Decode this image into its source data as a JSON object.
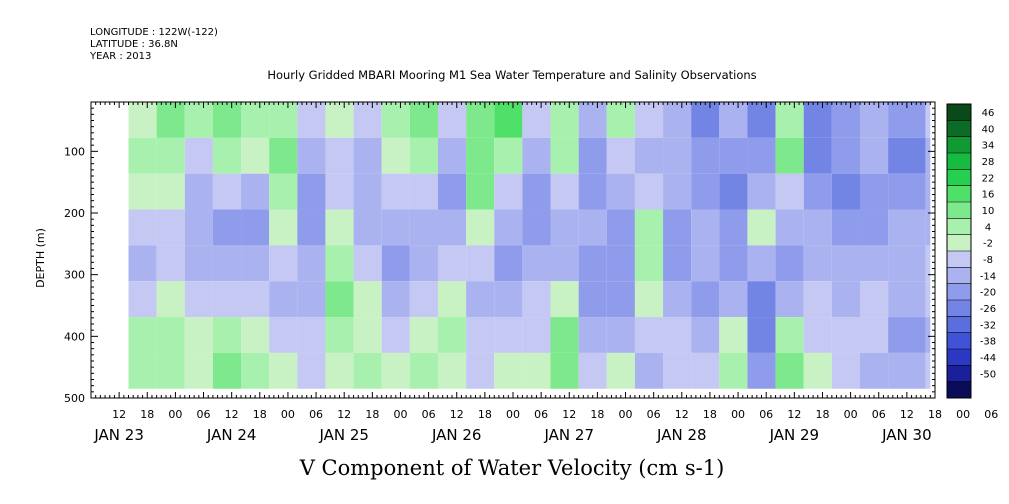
{
  "header": {
    "longitude": "LONGITUDE : 122W(-122)",
    "latitude": "LATITUDE : 36.8N",
    "year": "YEAR : 2013"
  },
  "chart_data": {
    "type": "heatmap",
    "title": "Hourly Gridded MBARI Mooring M1 Sea Water Temperature and Salinity Observations",
    "xlabel": "V Component of Water Velocity (cm s-1)",
    "ylabel": "DEPTH (m)",
    "y_ticks": [
      100,
      200,
      300,
      400,
      500
    ],
    "ylim": [
      500,
      20
    ],
    "x_hour_ticks": [
      "12",
      "18",
      "00",
      "06",
      "12",
      "18",
      "00",
      "06",
      "12",
      "18",
      "00",
      "06",
      "12",
      "18",
      "00",
      "06",
      "12",
      "18",
      "00",
      "06",
      "12",
      "18",
      "00",
      "06",
      "12",
      "18",
      "00",
      "06",
      "12",
      "18",
      "00",
      "06"
    ],
    "x_date_labels": [
      "JAN 23",
      "JAN 24",
      "JAN 25",
      "JAN 26",
      "JAN 27",
      "JAN 28",
      "JAN 29",
      "JAN 30"
    ],
    "xlim_hours": [
      6,
      186
    ],
    "data_start_hour": 14,
    "data_end_hour": 184,
    "depth_range_m": [
      20,
      485
    ],
    "colorbar": {
      "levels": [
        46,
        40,
        34,
        28,
        22,
        16,
        10,
        4,
        -2,
        -8,
        -14,
        -20,
        -26,
        -32,
        -38,
        -44,
        -50
      ],
      "colors_high_to_low": [
        "#0a4a1a",
        "#0d6b28",
        "#119934",
        "#16bb40",
        "#25d050",
        "#4fe06a",
        "#7ee88c",
        "#a8f0ad",
        "#c8f2c4",
        "#c4c8f2",
        "#aab2f0",
        "#8f9cec",
        "#7284e4",
        "#5a6ee0",
        "#3f52d8",
        "#2a38c4",
        "#1a1f9a",
        "#0a0c5a"
      ]
    },
    "columns": [
      {
        "hour": 14,
        "v": [
          4,
          6,
          2,
          -4,
          -8,
          -6,
          6,
          8
        ]
      },
      {
        "hour": 20,
        "v": [
          14,
          10,
          2,
          -6,
          -4,
          2,
          10,
          6
        ]
      },
      {
        "hour": 26,
        "v": [
          8,
          -2,
          -10,
          -12,
          -8,
          -4,
          2,
          4
        ]
      },
      {
        "hour": 32,
        "v": [
          12,
          10,
          -4,
          -14,
          -10,
          -2,
          6,
          12
        ]
      },
      {
        "hour": 38,
        "v": [
          6,
          2,
          -8,
          -16,
          -12,
          -6,
          4,
          8
        ]
      },
      {
        "hour": 44,
        "v": [
          10,
          14,
          10,
          2,
          -4,
          -8,
          -4,
          2
        ]
      },
      {
        "hour": 50,
        "v": [
          -4,
          -8,
          -14,
          -16,
          -12,
          -8,
          -4,
          -2
        ]
      },
      {
        "hour": 56,
        "v": [
          2,
          -2,
          -6,
          4,
          10,
          12,
          8,
          2
        ]
      },
      {
        "hour": 62,
        "v": [
          -6,
          -10,
          -12,
          -8,
          -4,
          0,
          4,
          6
        ]
      },
      {
        "hour": 68,
        "v": [
          8,
          4,
          -2,
          -10,
          -14,
          -12,
          -4,
          2
        ]
      },
      {
        "hour": 74,
        "v": [
          14,
          6,
          -6,
          -12,
          -8,
          -2,
          4,
          8
        ]
      },
      {
        "hour": 80,
        "v": [
          -4,
          -10,
          -14,
          -12,
          -6,
          2,
          6,
          4
        ]
      },
      {
        "hour": 86,
        "v": [
          12,
          16,
          12,
          4,
          -4,
          -8,
          -6,
          -2
        ]
      },
      {
        "hour": 92,
        "v": [
          18,
          8,
          -4,
          -12,
          -14,
          -10,
          -4,
          2
        ]
      },
      {
        "hour": 98,
        "v": [
          -2,
          -8,
          -14,
          -18,
          -12,
          -6,
          -2,
          4
        ]
      },
      {
        "hour": 104,
        "v": [
          8,
          6,
          -2,
          -10,
          -8,
          2,
          12,
          14
        ]
      },
      {
        "hour": 110,
        "v": [
          -10,
          -14,
          -16,
          -12,
          -14,
          -16,
          -10,
          -4
        ]
      },
      {
        "hour": 116,
        "v": [
          6,
          -4,
          -10,
          -14,
          -18,
          -16,
          -8,
          0
        ]
      },
      {
        "hour": 122,
        "v": [
          -6,
          -10,
          -4,
          6,
          10,
          4,
          -4,
          -10
        ]
      },
      {
        "hour": 128,
        "v": [
          -8,
          -12,
          -10,
          -14,
          -16,
          -12,
          -6,
          -2
        ]
      },
      {
        "hour": 134,
        "v": [
          -20,
          -18,
          -14,
          -10,
          -12,
          -14,
          -10,
          -4
        ]
      },
      {
        "hour": 140,
        "v": [
          -12,
          -16,
          -20,
          -18,
          -14,
          -8,
          4,
          10
        ]
      },
      {
        "hour": 146,
        "v": [
          -22,
          -18,
          -8,
          2,
          -10,
          -20,
          -24,
          -14
        ]
      },
      {
        "hour": 152,
        "v": [
          10,
          16,
          -4,
          -12,
          -14,
          -8,
          6,
          12
        ]
      },
      {
        "hour": 158,
        "v": [
          -20,
          -24,
          -18,
          -12,
          -8,
          -4,
          -2,
          0
        ]
      },
      {
        "hour": 164,
        "v": [
          -14,
          -18,
          -20,
          -16,
          -12,
          -10,
          -6,
          -2
        ]
      },
      {
        "hour": 170,
        "v": [
          -8,
          -12,
          -16,
          -14,
          -10,
          -6,
          -4,
          -8
        ]
      },
      {
        "hour": 176,
        "v": [
          -16,
          -20,
          -14,
          -10,
          -8,
          -12,
          -16,
          -10
        ]
      },
      {
        "hour": 184,
        "v": [
          -6,
          -10,
          -12,
          -8,
          -6,
          -4,
          -8,
          -6
        ]
      }
    ]
  }
}
